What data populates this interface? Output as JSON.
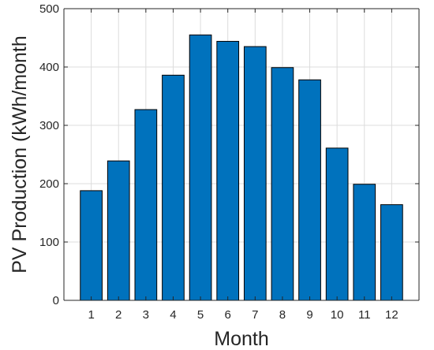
{
  "chart_data": {
    "type": "bar",
    "categories": [
      "1",
      "2",
      "3",
      "4",
      "5",
      "6",
      "7",
      "8",
      "9",
      "10",
      "11",
      "12"
    ],
    "values": [
      188,
      239,
      327,
      386,
      455,
      444,
      435,
      399,
      378,
      261,
      199,
      164
    ],
    "title": "",
    "xlabel": "Month",
    "ylabel": "PV Production (kWh/month",
    "ylim": [
      0,
      500
    ],
    "yticks": [
      0,
      100,
      200,
      300,
      400,
      500
    ],
    "grid": true,
    "bar_color": "#0072bd",
    "bar_edge_color": "#000000"
  }
}
